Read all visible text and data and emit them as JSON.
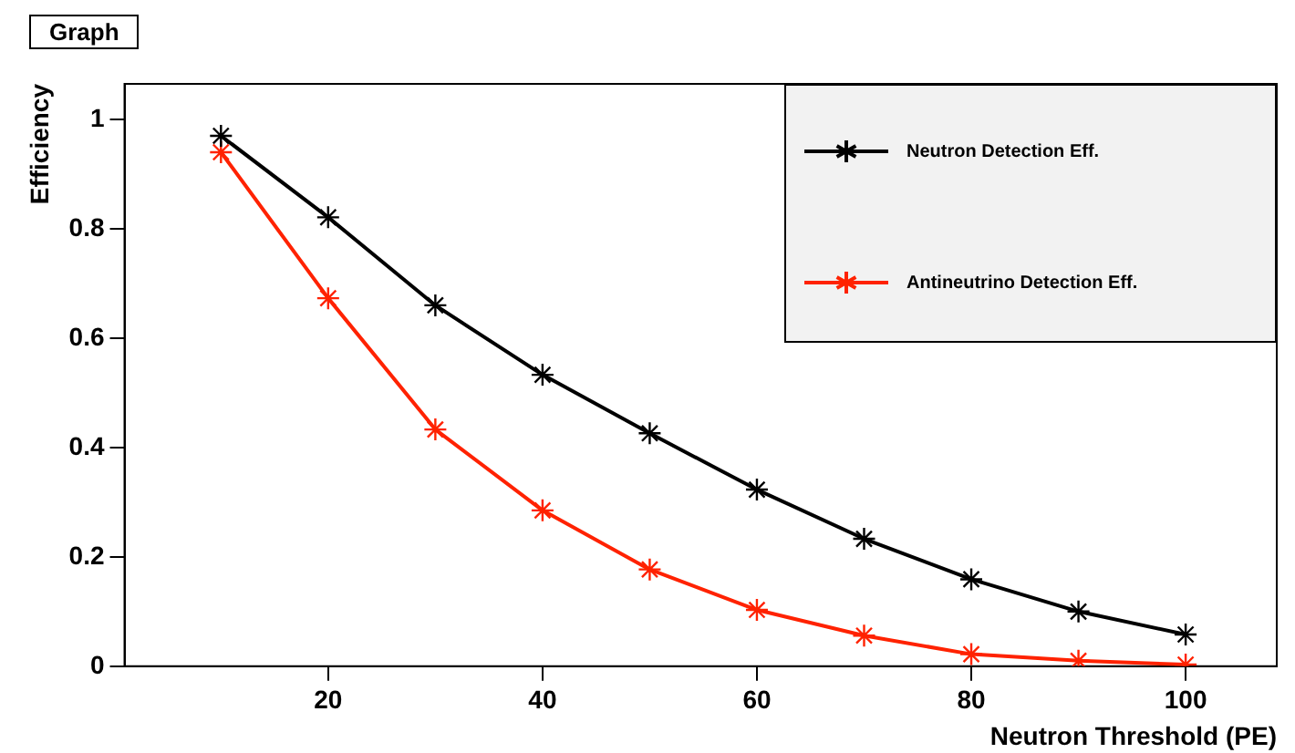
{
  "chart_data": {
    "type": "line",
    "title": "Graph",
    "xlabel": "Neutron Threshold (PE)",
    "ylabel": "Efficiency",
    "x": [
      10,
      20,
      30,
      40,
      50,
      60,
      70,
      80,
      90,
      100
    ],
    "series": [
      {
        "name": "Neutron Detection Eff.",
        "color": "#000000",
        "values": [
          0.97,
          0.821,
          0.66,
          0.533,
          0.426,
          0.323,
          0.233,
          0.159,
          0.1,
          0.058
        ]
      },
      {
        "name": "Antineutrino Detection Eff.",
        "color": "#ff2200",
        "values": [
          0.94,
          0.673,
          0.433,
          0.285,
          0.177,
          0.103,
          0.056,
          0.022,
          0.01,
          0.003
        ]
      }
    ],
    "xlim": [
      1,
      108.5
    ],
    "ylim": [
      0,
      1.065
    ],
    "xticks": [
      20,
      40,
      60,
      80,
      100
    ],
    "yticks": [
      0,
      0.2,
      0.4,
      0.6,
      0.8,
      1
    ],
    "grid": false,
    "legend": "top right",
    "marker": "cross",
    "line_style": "solid"
  }
}
